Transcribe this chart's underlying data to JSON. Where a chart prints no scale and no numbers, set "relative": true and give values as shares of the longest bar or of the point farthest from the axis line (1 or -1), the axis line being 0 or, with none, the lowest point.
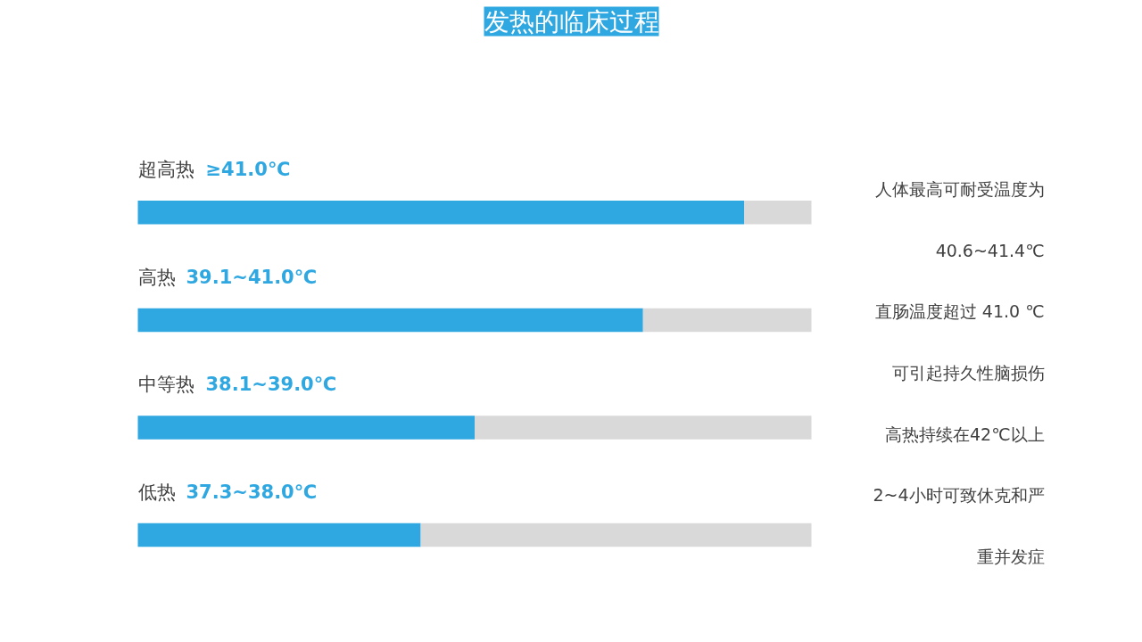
{
  "chart_data": {
    "type": "bar",
    "orientation": "horizontal",
    "stacked": true,
    "relative": true,
    "title": "发热的临床过程",
    "categories": [
      "超高热 ≥41.0℃",
      "高热 39.1~41.0℃",
      "中等热 38.1~39.0℃",
      "低热 37.3~38.0℃"
    ],
    "series": [
      {
        "color": "#2fa7e0",
        "values": [
          0.9,
          0.75,
          0.5,
          0.42
        ]
      },
      {
        "color": "#d9d9d9",
        "values": [
          0.1,
          0.25,
          0.5,
          0.58
        ]
      }
    ],
    "annotations": [
      "人体最高可耐受温度为",
      "40.6~41.4℃",
      "直肠温度超过 41.0 ℃",
      "可引起持久性脑损伤",
      "高热持续在42℃以上",
      "2~4小时可致休克和严",
      "重并发症"
    ],
    "grid": false
  }
}
